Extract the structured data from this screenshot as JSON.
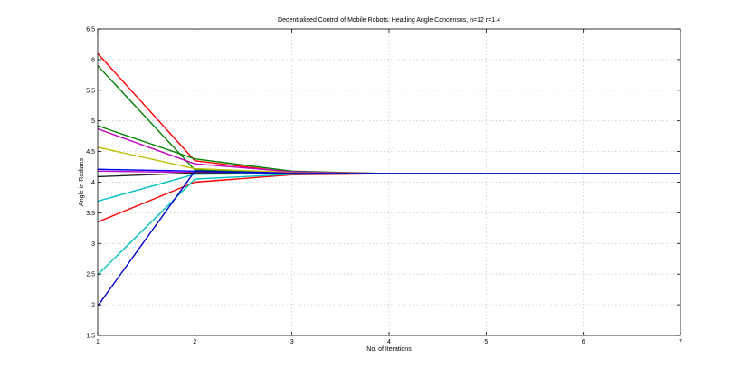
{
  "chart_data": {
    "type": "line",
    "title": "Decentralised Control of Mobile Robots: Heading Angle Concensus, n=12 r=1.4",
    "xlabel": "No. of Iterations",
    "ylabel": "Angle in Radians",
    "xlim": [
      1,
      7
    ],
    "ylim": [
      1.5,
      6.5
    ],
    "xticks": [
      1,
      2,
      3,
      4,
      5,
      6,
      7
    ],
    "yticks": [
      1.5,
      2,
      2.5,
      3,
      3.5,
      4,
      4.5,
      5,
      5.5,
      6,
      6.5
    ],
    "xtick_labels": [
      "1",
      "2",
      "3",
      "4",
      "5",
      "6",
      "7"
    ],
    "ytick_labels": [
      "1.5",
      "2",
      "2.5",
      "3",
      "3.5",
      "4",
      "4.5",
      "5",
      "5.5",
      "6",
      "6.5"
    ],
    "grid": true,
    "x": [
      1,
      2,
      3,
      4,
      5,
      6,
      7
    ],
    "series": [
      {
        "color": "#ff0000",
        "values": [
          6.1,
          4.35,
          4.16,
          4.14,
          4.14,
          4.14,
          4.14
        ]
      },
      {
        "color": "#008000",
        "values": [
          5.9,
          4.2,
          4.15,
          4.14,
          4.14,
          4.14,
          4.14
        ]
      },
      {
        "color": "#008000",
        "values": [
          4.92,
          4.38,
          4.18,
          4.14,
          4.14,
          4.14,
          4.14
        ]
      },
      {
        "color": "#bf00bf",
        "values": [
          4.87,
          4.3,
          4.17,
          4.14,
          4.14,
          4.14,
          4.14
        ]
      },
      {
        "color": "#bfbf00",
        "values": [
          4.57,
          4.22,
          4.16,
          4.14,
          4.14,
          4.14,
          4.14
        ]
      },
      {
        "color": "#0000ff",
        "values": [
          4.21,
          4.18,
          4.15,
          4.14,
          4.14,
          4.14,
          4.14
        ]
      },
      {
        "color": "#bf00bf",
        "values": [
          4.18,
          4.16,
          4.15,
          4.14,
          4.14,
          4.14,
          4.14
        ]
      },
      {
        "color": "#222222",
        "values": [
          4.09,
          4.15,
          4.14,
          4.14,
          4.14,
          4.14,
          4.14
        ]
      },
      {
        "color": "#00bfbf",
        "values": [
          3.69,
          4.13,
          4.14,
          4.14,
          4.14,
          4.14,
          4.14
        ]
      },
      {
        "color": "#ff0000",
        "values": [
          3.35,
          4.0,
          4.12,
          4.14,
          4.14,
          4.14,
          4.14
        ]
      },
      {
        "color": "#00bfbf",
        "values": [
          2.49,
          4.05,
          4.13,
          4.14,
          4.14,
          4.14,
          4.14
        ]
      },
      {
        "color": "#0000cc",
        "values": [
          1.98,
          4.18,
          4.14,
          4.14,
          4.14,
          4.14,
          4.14
        ]
      }
    ]
  }
}
